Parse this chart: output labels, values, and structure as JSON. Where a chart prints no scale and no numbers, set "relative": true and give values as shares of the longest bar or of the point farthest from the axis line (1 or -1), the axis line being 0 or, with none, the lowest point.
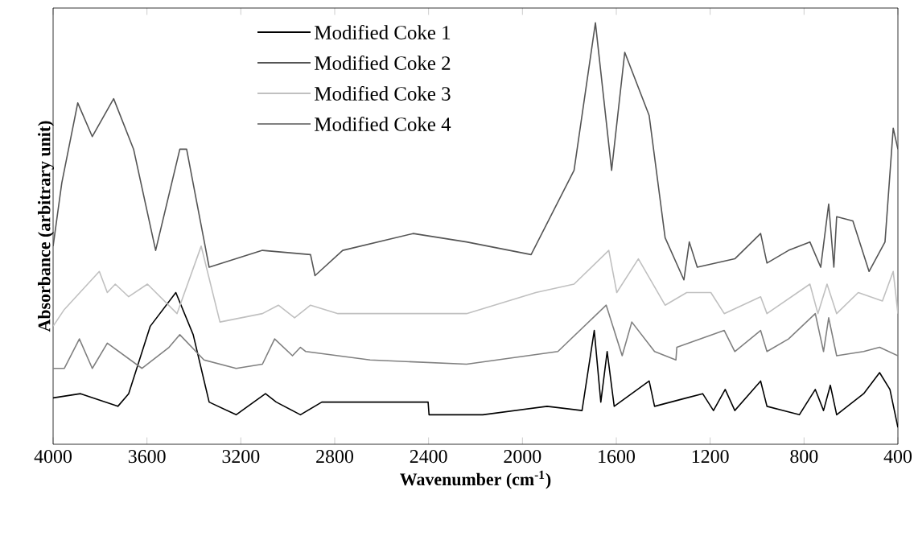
{
  "chart_data": {
    "type": "line",
    "relative": true,
    "xlabel": "Wavenumber (cm$^{-1}$)",
    "ylabel": "Absorbance (arbitrary unit)",
    "xlim": [
      4000,
      400
    ],
    "xticks": [
      4000,
      3600,
      3200,
      2800,
      2400,
      2000,
      1600,
      1200,
      800,
      400
    ],
    "legend": "top",
    "grid": false,
    "marker": "none",
    "line_style": "solid",
    "series": [
      {
        "name": "Modified Coke 1",
        "color": "#000000",
        "x": [
          4000,
          3883,
          3724,
          3678,
          3586,
          3477,
          3403,
          3335,
          3220,
          3095,
          3049,
          2946,
          2855,
          2649,
          2402,
          2398,
          2169,
          1895,
          1746,
          1694,
          1666,
          1639,
          1609,
          1460,
          1437,
          1300,
          1232,
          1186,
          1136,
          1095,
          985,
          958,
          820,
          752,
          717,
          688,
          661,
          546,
          478,
          434,
          400
        ],
        "values": [
          0.11,
          0.12,
          0.09,
          0.12,
          0.28,
          0.36,
          0.26,
          0.1,
          0.07,
          0.12,
          0.1,
          0.07,
          0.1,
          0.1,
          0.1,
          0.07,
          0.07,
          0.09,
          0.08,
          0.27,
          0.1,
          0.22,
          0.09,
          0.15,
          0.09,
          0.11,
          0.12,
          0.08,
          0.13,
          0.08,
          0.15,
          0.09,
          0.07,
          0.13,
          0.08,
          0.14,
          0.07,
          0.12,
          0.17,
          0.13,
          0.04
        ]
      },
      {
        "name": "Modified Coke 2",
        "color": "#555555",
        "x": [
          4000,
          3963,
          3895,
          3833,
          3742,
          3657,
          3563,
          3460,
          3431,
          3335,
          3108,
          2903,
          2884,
          2766,
          2466,
          2238,
          1963,
          1780,
          1689,
          1620,
          1564,
          1460,
          1392,
          1312,
          1289,
          1255,
          1095,
          985,
          958,
          866,
          775,
          729,
          695,
          673,
          661,
          592,
          523,
          455,
          420,
          400
        ],
        "values": [
          0.47,
          0.62,
          0.81,
          0.73,
          0.82,
          0.7,
          0.46,
          0.7,
          0.7,
          0.42,
          0.46,
          0.45,
          0.4,
          0.46,
          0.5,
          0.48,
          0.45,
          0.65,
          1.0,
          0.65,
          0.93,
          0.78,
          0.49,
          0.39,
          0.48,
          0.42,
          0.44,
          0.5,
          0.43,
          0.46,
          0.48,
          0.42,
          0.57,
          0.42,
          0.54,
          0.53,
          0.41,
          0.48,
          0.75,
          0.7
        ]
      },
      {
        "name": "Modified Coke 3",
        "color": "#c0c0c0",
        "x": [
          4000,
          3952,
          3803,
          3769,
          3735,
          3678,
          3598,
          3472,
          3369,
          3289,
          3108,
          3040,
          2971,
          2903,
          2786,
          2466,
          2238,
          1943,
          1780,
          1632,
          1598,
          1506,
          1392,
          1300,
          1197,
          1140,
          985,
          958,
          775,
          741,
          702,
          661,
          569,
          466,
          420,
          400
        ],
        "values": [
          0.28,
          0.32,
          0.41,
          0.36,
          0.38,
          0.35,
          0.38,
          0.31,
          0.47,
          0.29,
          0.31,
          0.33,
          0.3,
          0.33,
          0.31,
          0.31,
          0.31,
          0.36,
          0.38,
          0.46,
          0.36,
          0.44,
          0.33,
          0.36,
          0.36,
          0.31,
          0.35,
          0.31,
          0.38,
          0.31,
          0.38,
          0.31,
          0.36,
          0.34,
          0.41,
          0.31
        ]
      },
      {
        "name": "Modified Coke 4",
        "color": "#808080",
        "x": [
          4000,
          3952,
          3888,
          3833,
          3769,
          3621,
          3506,
          3460,
          3357,
          3220,
          3108,
          3056,
          2980,
          2946,
          2923,
          2649,
          2238,
          1849,
          1643,
          1575,
          1534,
          1437,
          1346,
          1342,
          1140,
          1095,
          985,
          958,
          866,
          752,
          717,
          695,
          661,
          546,
          478,
          400
        ],
        "values": [
          0.18,
          0.18,
          0.25,
          0.18,
          0.24,
          0.18,
          0.23,
          0.26,
          0.2,
          0.18,
          0.19,
          0.25,
          0.21,
          0.23,
          0.22,
          0.2,
          0.19,
          0.22,
          0.33,
          0.21,
          0.29,
          0.22,
          0.2,
          0.23,
          0.27,
          0.22,
          0.27,
          0.22,
          0.25,
          0.31,
          0.22,
          0.3,
          0.21,
          0.22,
          0.23,
          0.21
        ]
      }
    ]
  }
}
